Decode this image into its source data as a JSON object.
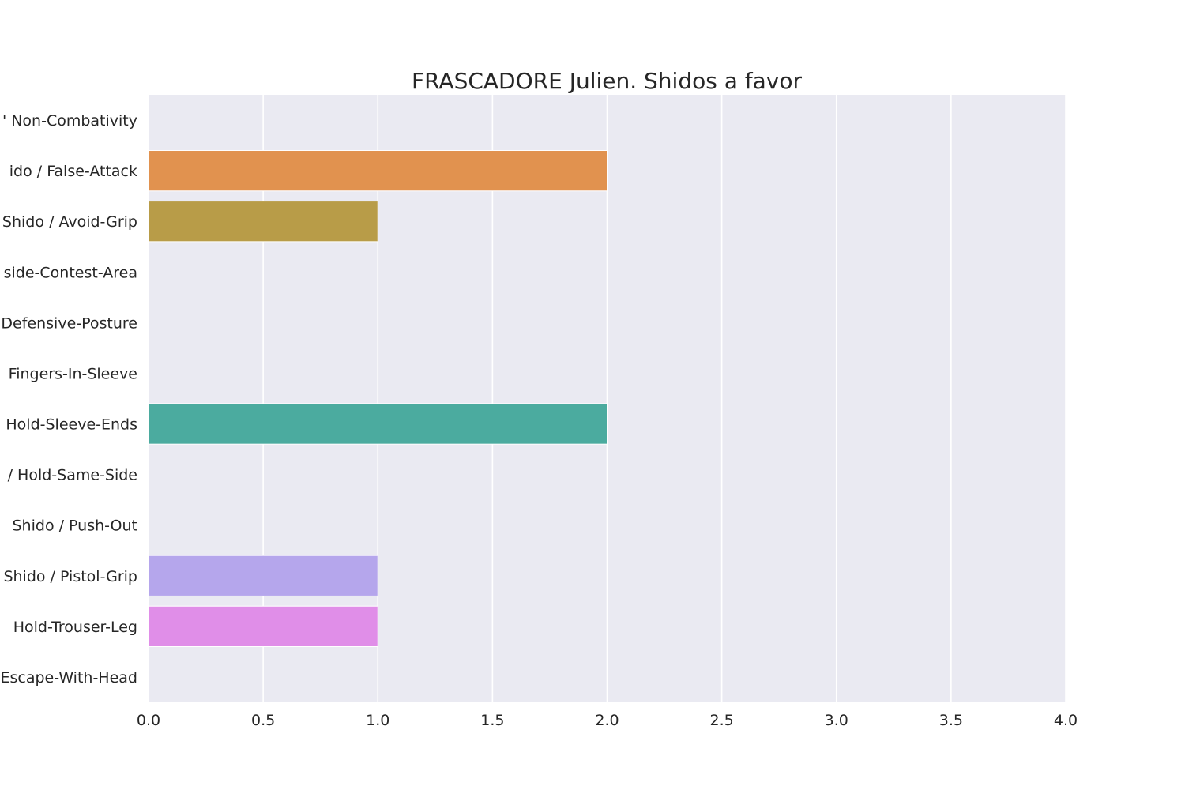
{
  "chart_data": {
    "type": "bar",
    "orientation": "horizontal",
    "title": "FRASCADORE Julien. Shidos a favor",
    "xlabel": "",
    "ylabel": "",
    "xlim": [
      0,
      4.0
    ],
    "x_ticks": [
      "0.0",
      "0.5",
      "1.0",
      "1.5",
      "2.0",
      "2.5",
      "3.0",
      "3.5",
      "4.0"
    ],
    "grid": true,
    "legend": "none",
    "categories": [
      "' Non-Combativity",
      "ido / False-Attack",
      "Shido / Avoid-Grip",
      "side-Contest-Area",
      "Defensive-Posture",
      "Fingers-In-Sleeve",
      "Hold-Sleeve-Ends",
      "/ Hold-Same-Side",
      "Shido / Push-Out",
      "Shido / Pistol-Grip",
      "Hold-Trouser-Leg",
      "Escape-With-Head"
    ],
    "values": [
      0,
      2,
      1,
      0,
      0,
      0,
      2,
      0,
      0,
      1,
      1,
      0
    ],
    "colors": [
      "#3274a1",
      "#e1924f",
      "#b89c48",
      "#3a923a",
      "#c03d3e",
      "#9372b2",
      "#4bab9f",
      "#845b53",
      "#d684bd",
      "#b5a6ec",
      "#e08ee8",
      "#7f7f7f"
    ],
    "plot_background": "#eaeaf2",
    "grid_color": "#ffffff"
  }
}
